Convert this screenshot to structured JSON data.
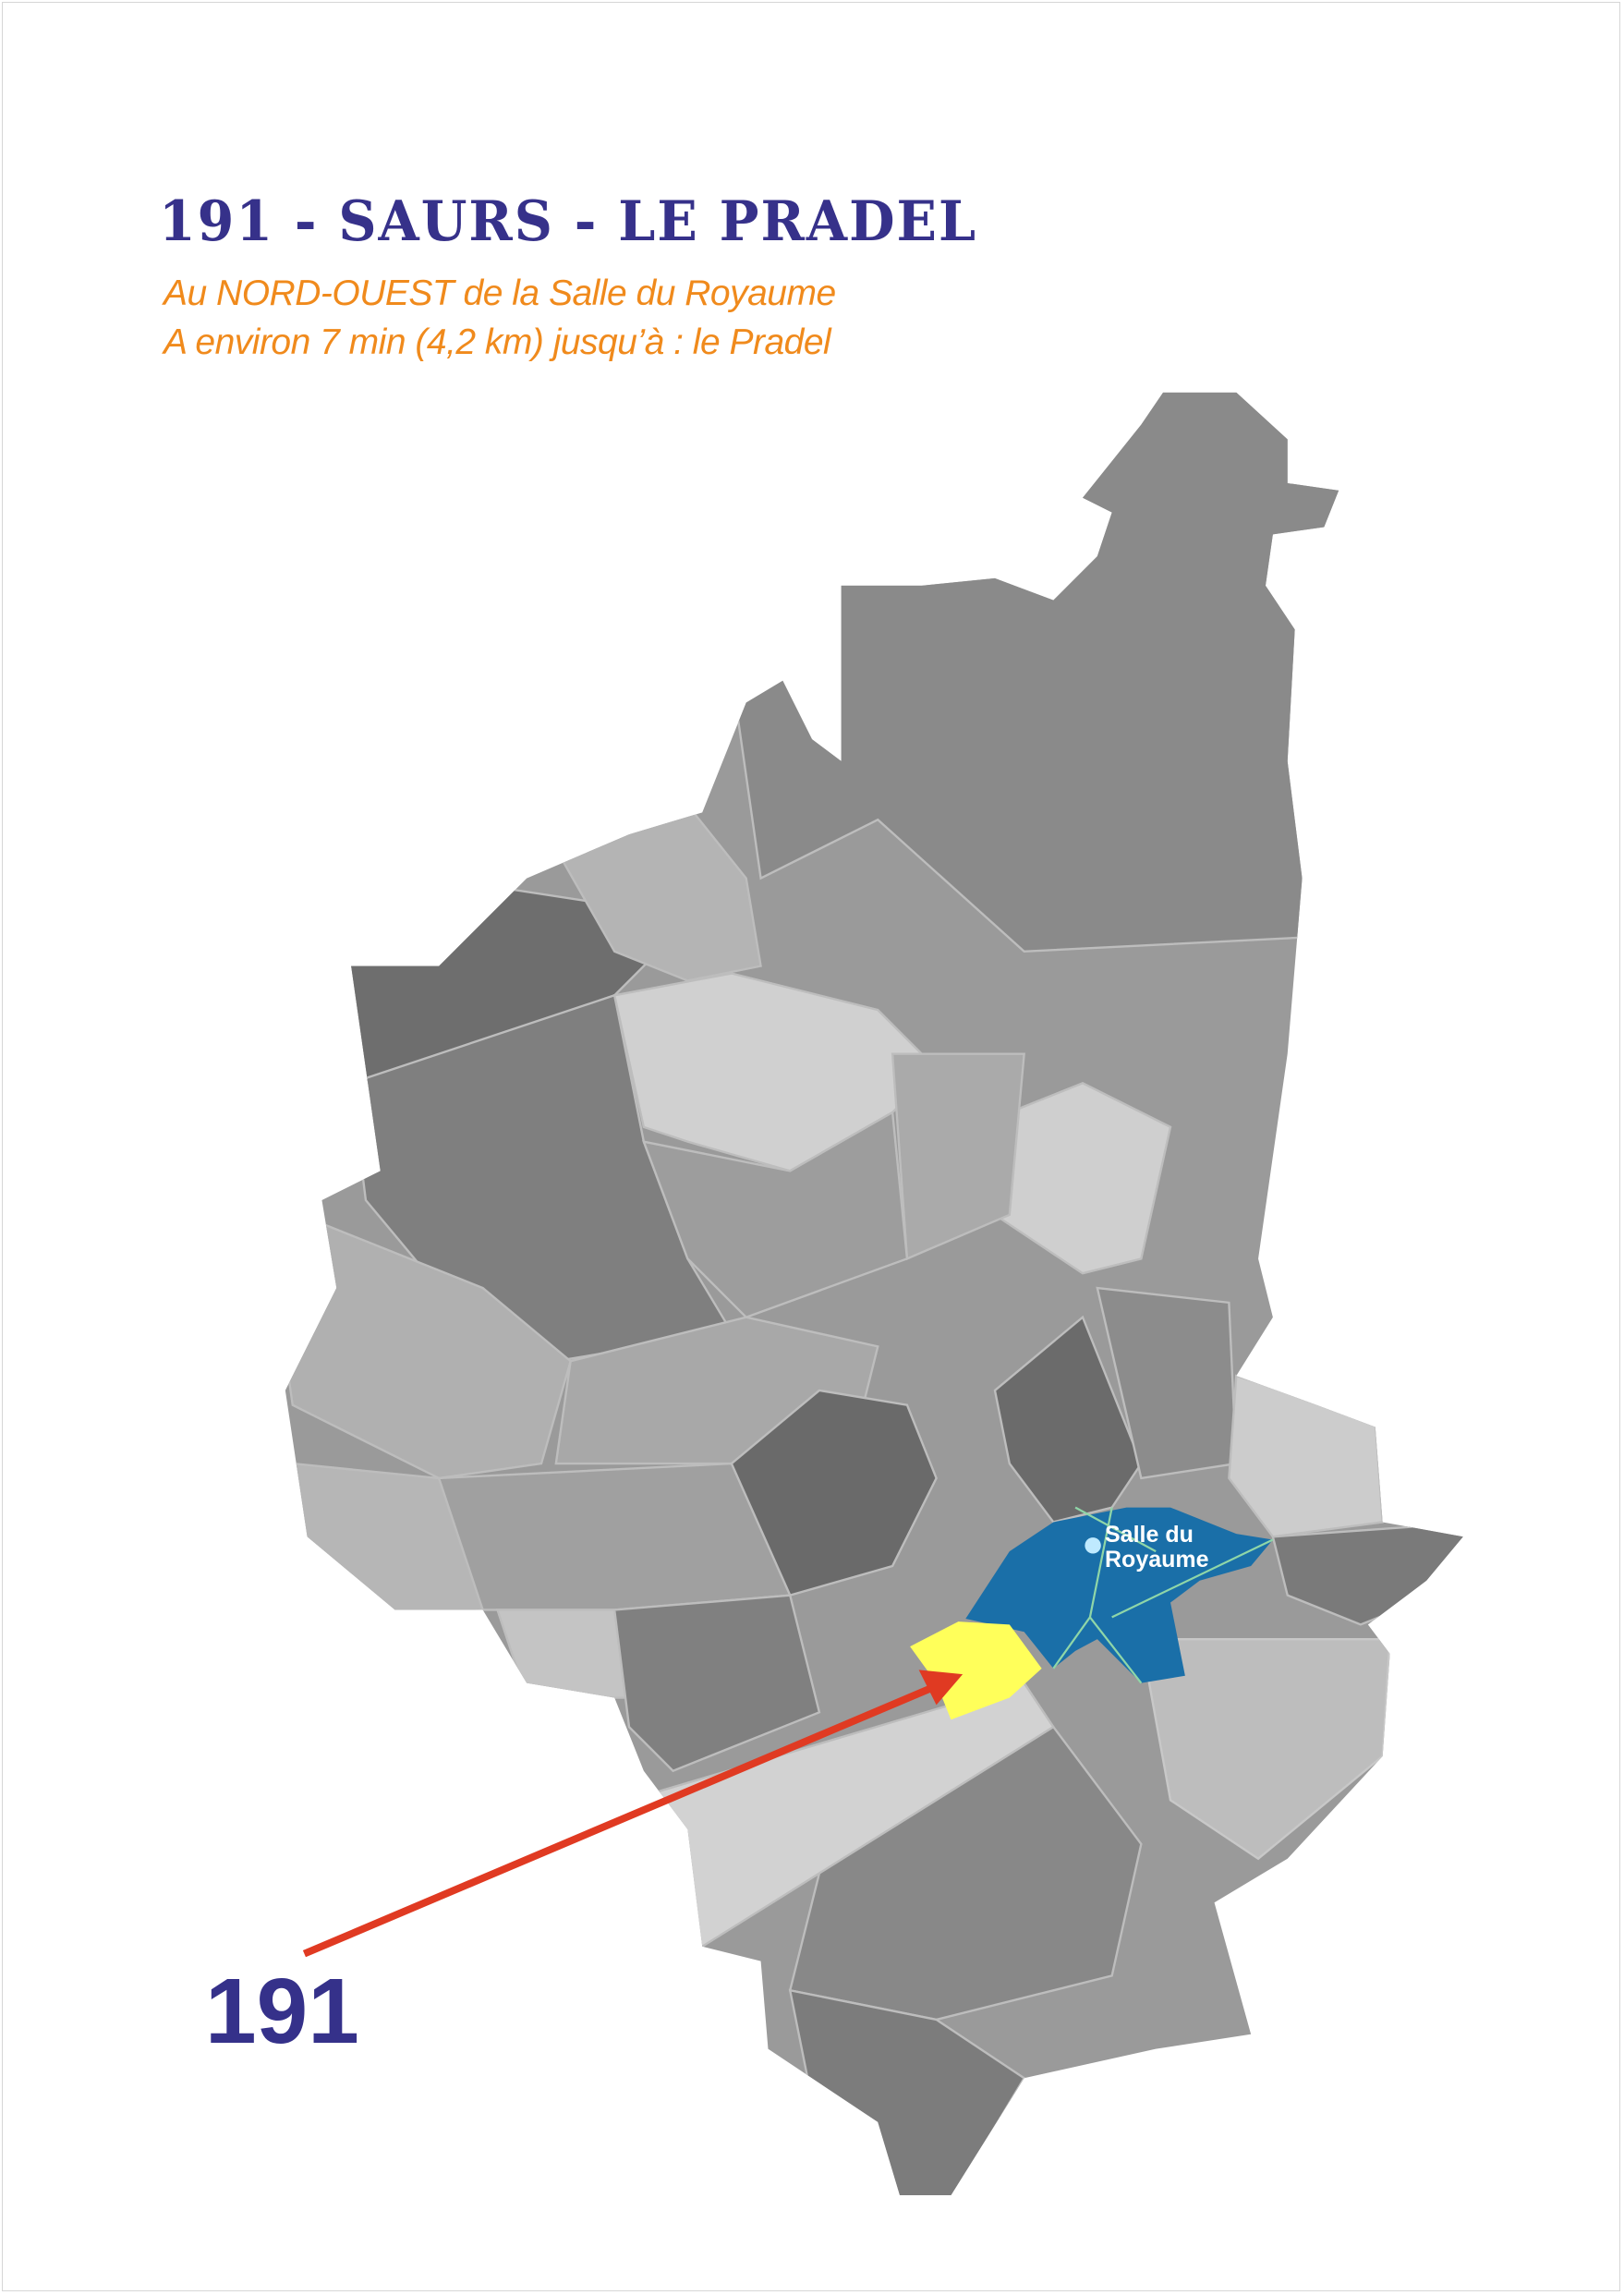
{
  "title": "191 - SAURS - LE PRADEL",
  "subtitle_lines": [
    "Au NORD-OUEST de la Salle du Royaume",
    "A environ 7 min (4,2 km) jusqu’à : le Pradel"
  ],
  "territory_number": "191",
  "landmark": {
    "line1": "Salle du",
    "line2": "Royaume"
  },
  "colors": {
    "title": "#36318a",
    "subtitle": "#f08a1c",
    "territory_highlight": "#ffff5a",
    "landmark_zone": "#1a6fa8",
    "arrow": "#e03a22",
    "landmark_dot": "#bfeaff"
  }
}
